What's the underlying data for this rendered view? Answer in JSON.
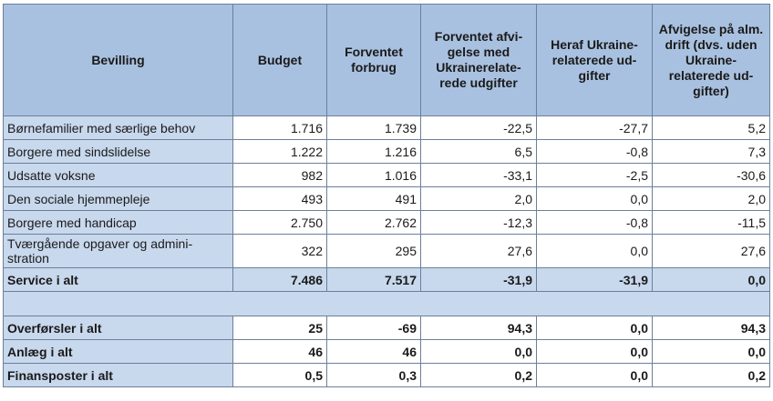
{
  "columns": [
    "Bevilling",
    "Budget",
    "Forventet forbrug",
    "Forventet afvi-gelse med Ukrainerelate-rede udgifter",
    "Heraf Ukraine-relaterede ud-gifter",
    "Afvigelse på alm. drift (dvs. uden Ukraine-relaterede ud-gifter)"
  ],
  "rows": [
    {
      "name": "Børnefamilier med særlige behov",
      "budget": "1.716",
      "forbrug": "1.739",
      "afvigelse": "-22,5",
      "ukraine": "-27,7",
      "alm": "5,2"
    },
    {
      "name": "Borgere med sindslidelse",
      "budget": "1.222",
      "forbrug": "1.216",
      "afvigelse": "6,5",
      "ukraine": "-0,8",
      "alm": "7,3"
    },
    {
      "name": "Udsatte voksne",
      "budget": "982",
      "forbrug": "1.016",
      "afvigelse": "-33,1",
      "ukraine": "-2,5",
      "alm": "-30,6"
    },
    {
      "name": "Den sociale hjemmepleje",
      "budget": "493",
      "forbrug": "491",
      "afvigelse": "2,0",
      "ukraine": "0,0",
      "alm": "2,0"
    },
    {
      "name": "Borgere med handicap",
      "budget": "2.750",
      "forbrug": "2.762",
      "afvigelse": "-12,3",
      "ukraine": "-0,8",
      "alm": "-11,5"
    },
    {
      "name": "Tværgående opgaver og admini-stration",
      "budget": "322",
      "forbrug": "295",
      "afvigelse": "27,6",
      "ukraine": "0,0",
      "alm": "27,6"
    }
  ],
  "service_total": {
    "name": "Service i alt",
    "budget": "7.486",
    "forbrug": "7.517",
    "afvigelse": "-31,9",
    "ukraine": "-31,9",
    "alm": "0,0"
  },
  "summary_rows": [
    {
      "name": "Overførsler i alt",
      "budget": "25",
      "forbrug": "-69",
      "afvigelse": "94,3",
      "ukraine": "0,0",
      "alm": "94,3"
    },
    {
      "name": "Anlæg i alt",
      "budget": "46",
      "forbrug": "46",
      "afvigelse": "0,0",
      "ukraine": "0,0",
      "alm": "0,0"
    },
    {
      "name": "Finansposter i alt",
      "budget": "0,5",
      "forbrug": "0,3",
      "afvigelse": "0,2",
      "ukraine": "0,0",
      "alm": "0,2"
    }
  ],
  "colors": {
    "header_bg": "#a9c1e0",
    "label_bg": "#c8d8ed",
    "border": "#6d7f99"
  }
}
